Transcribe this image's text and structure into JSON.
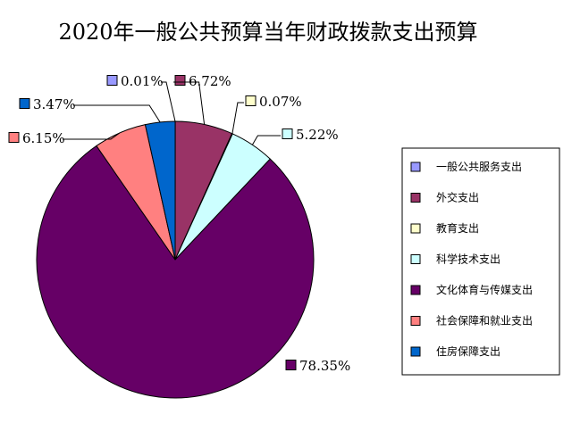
{
  "chart_data": {
    "type": "pie",
    "title": "2020年一般公共预算当年财政拨款支出预算",
    "legend_position": "right",
    "slices": [
      {
        "name": "一般公共服务支出",
        "value": 0.01,
        "label": "0.01%",
        "color": "#9999ff"
      },
      {
        "name": "外交支出",
        "value": 6.72,
        "label": "6.72%",
        "color": "#993366"
      },
      {
        "name": "教育支出",
        "value": 0.07,
        "label": "0.07%",
        "color": "#ffffcc"
      },
      {
        "name": "科学技术支出",
        "value": 5.22,
        "label": "5.22%",
        "color": "#ccffff"
      },
      {
        "name": "文化体育与传媒支出",
        "value": 78.35,
        "label": "78.35%",
        "color": "#660066"
      },
      {
        "name": "社会保障和就业支出",
        "value": 6.15,
        "label": "6.15%",
        "color": "#ff8080"
      },
      {
        "name": "住房保障支出",
        "value": 3.47,
        "label": "3.47%",
        "color": "#0066cc"
      }
    ]
  }
}
